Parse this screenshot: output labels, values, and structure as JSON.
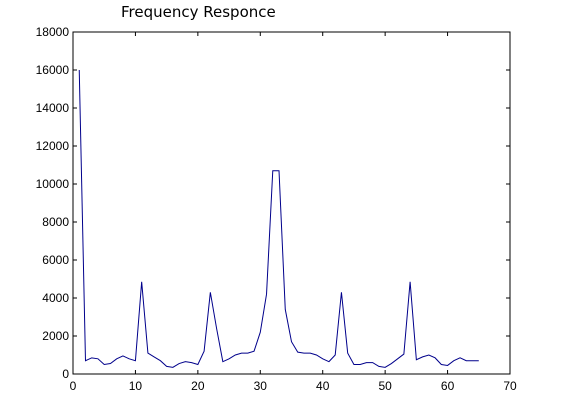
{
  "chart_data": {
    "type": "line",
    "title": "Frequency Responce",
    "xlabel": "",
    "ylabel": "",
    "xlim": [
      0,
      70
    ],
    "ylim": [
      0,
      18000
    ],
    "x_ticks": [
      0,
      10,
      20,
      30,
      40,
      50,
      60,
      70
    ],
    "y_ticks": [
      0,
      2000,
      4000,
      6000,
      8000,
      10000,
      12000,
      14000,
      16000,
      18000
    ],
    "grid": false,
    "line_color": "#00008b",
    "series": [
      {
        "x": [
          1,
          2,
          3,
          4,
          5,
          6,
          7,
          8,
          9,
          10,
          11,
          12,
          13,
          14,
          15,
          16,
          17,
          18,
          19,
          20,
          21,
          22,
          23,
          24,
          25,
          26,
          27,
          28,
          29,
          30,
          31,
          32,
          33,
          34,
          35,
          36,
          37,
          38,
          39,
          40,
          41,
          42,
          43,
          44,
          45,
          46,
          47,
          48,
          49,
          50,
          51,
          52,
          53,
          54,
          55,
          56,
          57,
          58,
          59,
          60,
          61,
          62,
          63,
          64,
          65
        ],
        "values": [
          16000,
          700,
          850,
          800,
          500,
          550,
          800,
          950,
          800,
          700,
          4850,
          1100,
          900,
          700,
          400,
          350,
          550,
          650,
          600,
          500,
          1200,
          4300,
          2400,
          650,
          800,
          1000,
          1100,
          1100,
          1200,
          2200,
          4200,
          10700,
          10700,
          3400,
          1700,
          1150,
          1100,
          1100,
          1000,
          800,
          650,
          1000,
          4300,
          1100,
          500,
          500,
          600,
          600,
          400,
          350,
          550,
          800,
          1050,
          4850,
          750,
          900,
          1000,
          850,
          500,
          450,
          700,
          850,
          700,
          700,
          700
        ]
      }
    ]
  }
}
